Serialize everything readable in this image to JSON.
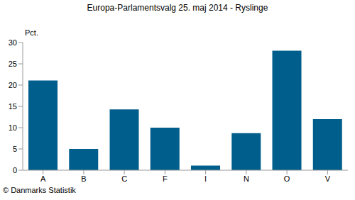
{
  "chart_data": {
    "type": "bar",
    "title": "Europa-Parlamentsvalg 25. maj 2014 - Ryslinge",
    "y_label": "Pct.",
    "annotation": "© Danmarks Statistik",
    "categories": [
      "A",
      "B",
      "C",
      "F",
      "I",
      "N",
      "O",
      "V"
    ],
    "values": [
      21.1,
      5.0,
      14.3,
      10.0,
      1.1,
      8.7,
      28.1,
      12.0
    ],
    "color": "#005e8c",
    "ylim": [
      0,
      30
    ],
    "yticks": [
      0,
      5,
      10,
      15,
      20,
      25,
      30
    ],
    "grid": false
  }
}
